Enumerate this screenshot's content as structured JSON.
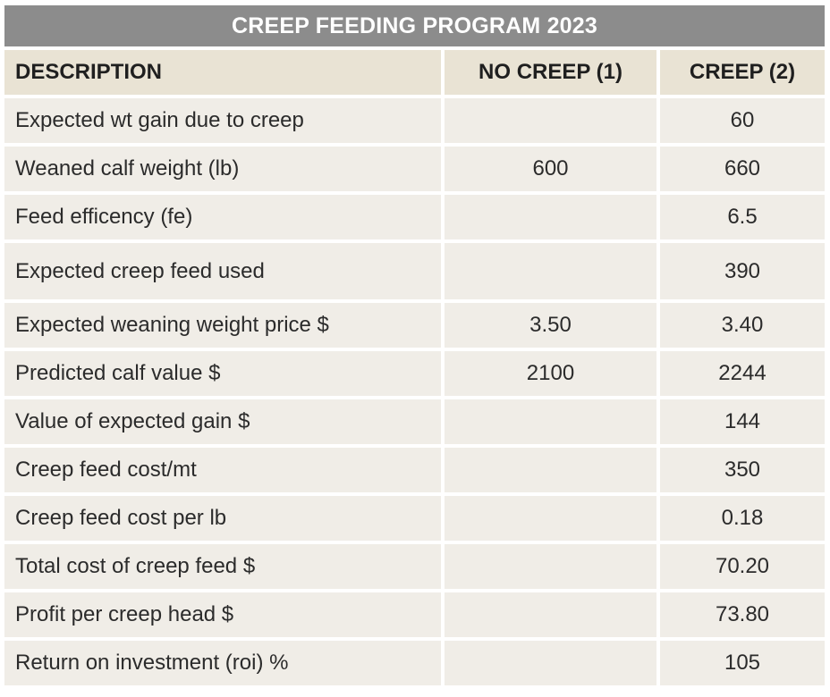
{
  "title": "CREEP FEEDING PROGRAM 2023",
  "headers": {
    "description": "DESCRIPTION",
    "no_creep": "NO CREEP (1)",
    "creep": "CREEP (2)"
  },
  "rows": [
    {
      "description": "Expected wt gain due to creep",
      "no_creep": "",
      "creep": "60"
    },
    {
      "description": "Weaned calf weight (lb)",
      "no_creep": "600",
      "creep": "660"
    },
    {
      "description": "Feed efficency (fe)",
      "no_creep": "",
      "creep": "6.5"
    },
    {
      "description": "Expected creep feed used",
      "no_creep": "",
      "creep": "390"
    },
    {
      "description": "Expected weaning weight price $",
      "no_creep": "3.50",
      "creep": "3.40"
    },
    {
      "description": "Predicted calf value $",
      "no_creep": "2100",
      "creep": "2244"
    },
    {
      "description": "Value of expected gain  $",
      "no_creep": "",
      "creep": "144"
    },
    {
      "description": "Creep feed cost/mt",
      "no_creep": "",
      "creep": "350"
    },
    {
      "description": "Creep feed cost per lb",
      "no_creep": "",
      "creep": "0.18"
    },
    {
      "description": "Total cost of creep feed $",
      "no_creep": "",
      "creep": "70.20"
    },
    {
      "description": "Profit per creep head $",
      "no_creep": "",
      "creep": "73.80"
    },
    {
      "description": "Return on investment (roi) %",
      "no_creep": "",
      "creep": "105"
    }
  ],
  "colors": {
    "title_bg": "#8c8c8c",
    "header_bg": "#e9e3d4",
    "cell_bg": "#f0ede7"
  }
}
